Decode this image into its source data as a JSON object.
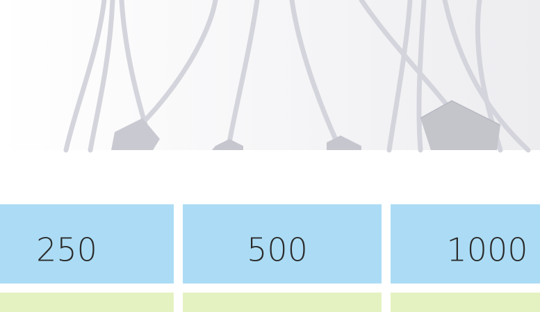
{
  "table": {
    "rows": [
      [
        "250",
        "500",
        "1000"
      ]
    ]
  }
}
